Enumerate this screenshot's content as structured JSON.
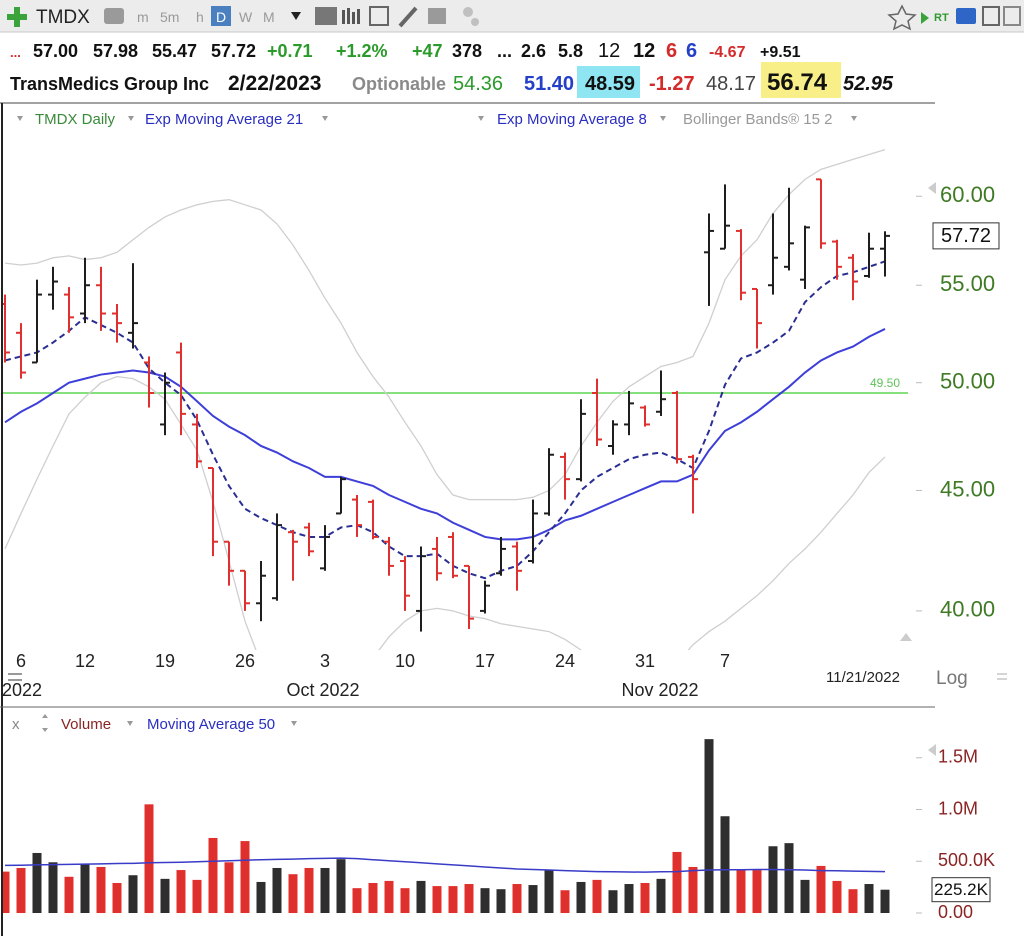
{
  "toolbar": {
    "symbol": "TMDX",
    "intervals": [
      "m",
      "5m",
      "h",
      "D",
      "W",
      "M"
    ],
    "rt": "RT"
  },
  "quote": {
    "line1": [
      "...",
      "57.00",
      "57.98",
      "55.47",
      "57.72",
      "+0.71",
      "+1.2%",
      "+47",
      "378",
      "...",
      "2.6",
      "5.8",
      "12",
      "12",
      "6",
      "6",
      "-4.67",
      "+9.51"
    ],
    "company": "TransMedics Group Inc",
    "date": "2/22/2023",
    "optionable": "Optionable",
    "line2": [
      "54.36",
      "51.40",
      "48.59",
      "-1.27",
      "48.17",
      "56.74",
      "52.95"
    ]
  },
  "chart_data": [
    {
      "type": "ohlc",
      "name": "TMDX Daily",
      "up_color": "#1e1e1e",
      "down_color": "#e0302e",
      "categories": [
        null,
        "6",
        null,
        null,
        null,
        "12",
        null,
        null,
        null,
        null,
        "19",
        null,
        null,
        null,
        null,
        "26",
        null,
        null,
        null,
        null,
        "3",
        null,
        null,
        null,
        null,
        "10",
        null,
        null,
        null,
        null,
        "17",
        null,
        null,
        null,
        null,
        "24",
        null,
        null,
        null,
        null,
        "31",
        null,
        null,
        null,
        null,
        "7",
        null,
        null,
        null,
        null,
        null,
        null,
        null,
        null,
        null,
        null
      ],
      "period_labels": [
        "2022",
        "Oct 2022",
        "Nov 2022"
      ],
      "date_label": "11/21/2022",
      "scale_label": "Log",
      "open": [
        54,
        52.5,
        51,
        54.5,
        54.5,
        53.5,
        55,
        53.5,
        52.5,
        51,
        48,
        51.5,
        48,
        46,
        42.8,
        41.6,
        40.3,
        40.5,
        43.2,
        43.4,
        41.7,
        44,
        44.6,
        44.5,
        42.8,
        42,
        40,
        42.5,
        43,
        41.8,
        40,
        41.5,
        42.6,
        42,
        44,
        46.5,
        45.5,
        49.5,
        47,
        48,
        48.8,
        48.6,
        49.5,
        46.5,
        56.8,
        57,
        58,
        54.8,
        55,
        56,
        55.3,
        61,
        57.4,
        56.5,
        55.5,
        57
      ],
      "high": [
        54.5,
        53,
        55.3,
        56,
        54.9,
        56.5,
        56,
        54,
        56.2,
        51.3,
        50.5,
        52,
        48.5,
        46,
        42.8,
        41.6,
        42,
        44,
        43.3,
        43.6,
        43.5,
        45.6,
        44.8,
        44.6,
        43,
        42.2,
        42.6,
        43,
        43.2,
        41.8,
        41.2,
        43,
        42.8,
        44.6,
        46.9,
        46.7,
        49.2,
        50.2,
        48.2,
        49.6,
        48.9,
        50.6,
        49.6,
        46.6,
        59,
        60.7,
        58.1,
        54.8,
        59,
        60.5,
        58.3,
        61,
        57.5,
        56.7,
        57.9,
        57.98
      ],
      "low": [
        51,
        50.2,
        51,
        53.7,
        52.5,
        53,
        52.6,
        52,
        51.7,
        48.8,
        47.5,
        47.5,
        46,
        42.2,
        41,
        40,
        39.6,
        40.4,
        41.2,
        42.2,
        41.6,
        44,
        43,
        42.9,
        41.4,
        40,
        39.2,
        41.2,
        41.3,
        39.3,
        39.9,
        41.4,
        40.8,
        41.9,
        43.9,
        44.6,
        45.4,
        47,
        46.6,
        47.5,
        47.9,
        48.4,
        46.2,
        44,
        53.9,
        57,
        54.2,
        51.7,
        54.5,
        55.8,
        54.8,
        57,
        55.3,
        54.2,
        55.4,
        55.47
      ],
      "close": [
        51.5,
        50.5,
        54.5,
        55.2,
        53.3,
        55,
        53.5,
        53,
        53,
        49.5,
        50,
        48.5,
        46.3,
        42.8,
        41.6,
        40.3,
        41.4,
        43.5,
        42.8,
        42.4,
        43,
        45.5,
        43.5,
        43,
        41.8,
        40.6,
        42.2,
        41.5,
        41.4,
        39.7,
        41,
        42.5,
        41.6,
        44,
        46.6,
        45.5,
        48.5,
        47.3,
        48,
        49,
        48,
        49.2,
        46.4,
        45.5,
        58,
        58.3,
        54.6,
        53,
        56.5,
        57.3,
        58.2,
        57.3,
        56,
        55.2,
        57,
        57.72
      ],
      "series": [
        {
          "name": "Exp Moving Average 21",
          "color": "#3d3fd8",
          "dash": false,
          "values": [
            48.1,
            48.6,
            49.0,
            49.5,
            50.0,
            50.2,
            50.4,
            50.5,
            50.6,
            50.5,
            50.3,
            49.8,
            49.1,
            48.4,
            47.9,
            47.5,
            47.0,
            46.7,
            46.3,
            46.0,
            45.6,
            45.6,
            45.4,
            45.2,
            44.8,
            44.5,
            44.2,
            44.0,
            43.6,
            43.3,
            43.0,
            42.9,
            42.9,
            43.0,
            43.3,
            43.7,
            43.9,
            44.2,
            44.5,
            44.8,
            45.1,
            45.4,
            45.4,
            45.7,
            46.8,
            47.7,
            48.1,
            48.6,
            49.2,
            49.8,
            50.5,
            51.1,
            51.5,
            51.8,
            52.3,
            52.7
          ]
        },
        {
          "name": "Exp Moving Average 8",
          "color": "#2a2e92",
          "dash": true,
          "values": [
            51.1,
            51.3,
            51.5,
            52.0,
            52.6,
            53.3,
            52.9,
            52.5,
            52.0,
            50.7,
            50.0,
            49.4,
            48.2,
            46.6,
            45.2,
            44.2,
            43.8,
            43.5,
            43.2,
            43.0,
            43.0,
            43.4,
            43.5,
            43.2,
            42.6,
            42.2,
            42.2,
            42.3,
            41.8,
            41.5,
            41.3,
            41.6,
            41.8,
            42.4,
            43.2,
            44.0,
            45.0,
            45.6,
            46.0,
            46.4,
            46.6,
            46.7,
            46.4,
            46.0,
            47.7,
            49.9,
            51.2,
            51.5,
            52.0,
            52.6,
            54.1,
            54.9,
            55.5,
            55.7,
            56.0,
            56.3
          ]
        },
        {
          "name": "Bollinger Bands® 15 2",
          "color": "#cfcfcf",
          "dash": false,
          "upper": [
            56.2,
            56.1,
            56.2,
            56.5,
            56.6,
            56.4,
            56.5,
            56.8,
            57.5,
            58.2,
            58.8,
            59.2,
            59.5,
            59.7,
            59.8,
            59.5,
            59.2,
            58.4,
            57.2,
            55.8,
            54.3,
            53.0,
            51.5,
            50.3,
            49.3,
            48.1,
            47.0,
            45.7,
            44.8,
            44.6,
            44.6,
            44.6,
            44.6,
            44.7,
            45.0,
            45.7,
            47.0,
            48.1,
            49.1,
            49.8,
            50.3,
            50.8,
            51.0,
            51.3,
            53.0,
            55.3,
            56.6,
            57.5,
            59.0,
            60.1,
            61.0,
            61.6,
            61.9,
            62.2,
            62.5,
            62.8
          ],
          "lower": [
            42.5,
            44.0,
            45.5,
            47.0,
            48.5,
            49.3,
            50.0,
            50.3,
            50.2,
            49.8,
            49.2,
            48.0,
            46.8,
            44.5,
            42.0,
            39.6,
            38.0,
            37.0,
            36.5,
            36.3,
            36.5,
            36.9,
            37.5,
            38.2,
            39.0,
            39.6,
            40.0,
            40.1,
            40.0,
            39.8,
            39.7,
            39.5,
            39.4,
            39.3,
            39.2,
            38.9,
            38.5,
            38.0,
            37.5,
            37.3,
            37.3,
            37.5,
            38.0,
            38.7,
            39.2,
            39.6,
            40.1,
            40.6,
            41.2,
            41.9,
            42.5,
            43.2,
            44.0,
            44.8,
            45.8,
            46.5
          ]
        }
      ],
      "hline": {
        "value": 49.5,
        "label": "49.50",
        "color": "#86e07e"
      },
      "log_scale": true,
      "ylim": [
        38.5,
        65.6
      ],
      "yticks": [
        {
          "value": 40,
          "label": "40.00"
        },
        {
          "value": 45,
          "label": "45.00"
        },
        {
          "value": 50,
          "label": "50.00"
        },
        {
          "value": 55,
          "label": "55.00"
        },
        {
          "value": 60,
          "label": "60.00"
        }
      ]
    },
    {
      "type": "bar",
      "close_button": "x",
      "series": [
        {
          "name": "Volume",
          "values": [
            400000,
            435000,
            580000,
            490000,
            350000,
            470000,
            445000,
            290000,
            365000,
            1050000,
            330000,
            415000,
            320000,
            725000,
            490000,
            695000,
            300000,
            435000,
            375000,
            435000,
            435000,
            520000,
            240000,
            290000,
            310000,
            240000,
            310000,
            260000,
            260000,
            280000,
            240000,
            230000,
            280000,
            270000,
            415000,
            220000,
            300000,
            320000,
            220000,
            280000,
            290000,
            330000,
            590000,
            445000,
            1680000,
            935000,
            415000,
            415000,
            645000,
            675000,
            320000,
            455000,
            310000,
            230000,
            280000,
            225200
          ],
          "value_labels": [
            null,
            null,
            null,
            null,
            null,
            null,
            null,
            null,
            null,
            null,
            null,
            null,
            null,
            null,
            null,
            null,
            null,
            null,
            null,
            null,
            null,
            null,
            null,
            null,
            null,
            null,
            null,
            null,
            null,
            null,
            null,
            null,
            null,
            null,
            null,
            null,
            null,
            null,
            null,
            null,
            null,
            null,
            null,
            null,
            null,
            null,
            null,
            null,
            null,
            null,
            null,
            null,
            null,
            null,
            null,
            "225.2K"
          ]
        },
        {
          "name": "Moving Average 50",
          "color": "#3a3cc8",
          "values": [
            460000,
            462000,
            465000,
            468000,
            470000,
            472000,
            475000,
            478000,
            480000,
            485000,
            488000,
            490000,
            495000,
            500000,
            505000,
            510000,
            515000,
            518000,
            520000,
            525000,
            528000,
            530000,
            525000,
            515000,
            505000,
            495000,
            485000,
            475000,
            465000,
            455000,
            445000,
            435000,
            425000,
            420000,
            415000,
            410000,
            405000,
            400000,
            398000,
            396000,
            395000,
            398000,
            400000,
            410000,
            415000,
            418000,
            418000,
            420000,
            420000,
            418000,
            415000,
            410000,
            408000,
            405000,
            402000,
            400000
          ]
        }
      ],
      "ylim": [
        0,
        1720000
      ],
      "yticks": [
        {
          "value": 0,
          "label": "0.00"
        },
        {
          "value": 500000,
          "label": "500.0K"
        },
        {
          "value": 1000000,
          "label": "1.0M"
        },
        {
          "value": 1500000,
          "label": "1.5M"
        }
      ]
    }
  ]
}
